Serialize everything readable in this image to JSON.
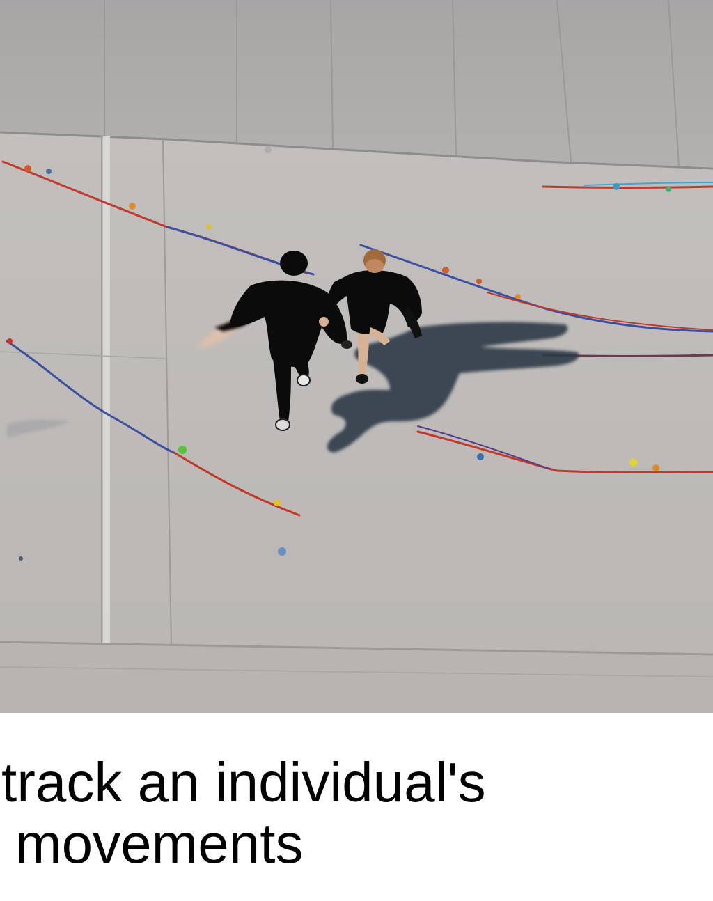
{
  "caption": {
    "line1": "track an individual's",
    "line2": "movements"
  },
  "colors": {
    "ground": "#bdbab7",
    "upper_slab": "#aeacaa",
    "clothing": "#0b0b0b",
    "shadow": "#2f3b48",
    "rope_red": "#c0392b",
    "rope_blue": "#3a4fa0",
    "caption_text": "#000000",
    "caption_background": "#ffffff"
  }
}
